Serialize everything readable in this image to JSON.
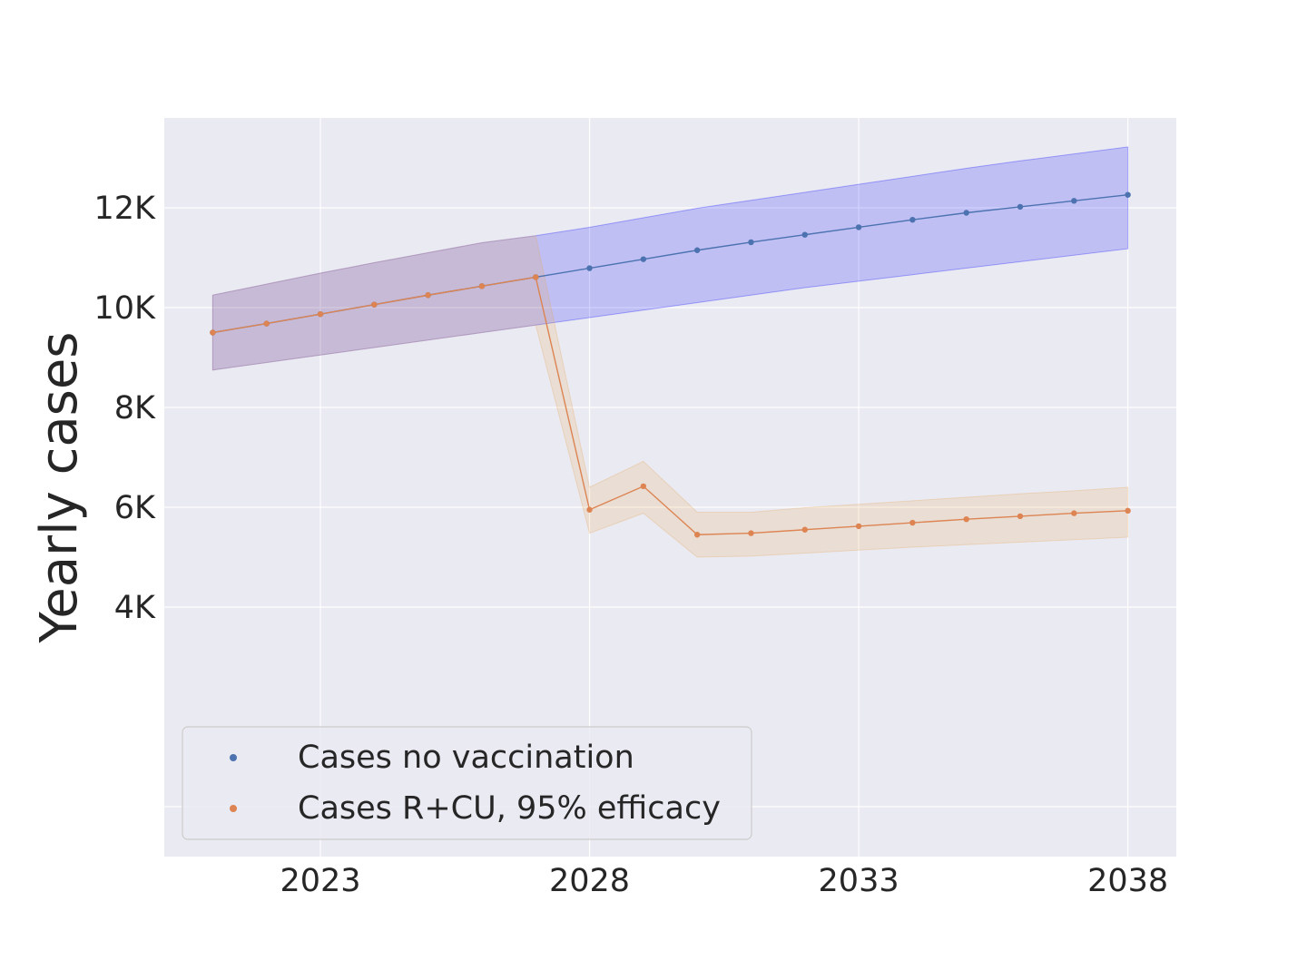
{
  "chart_data": {
    "type": "line",
    "title": "",
    "xlabel": "",
    "ylabel": "Yearly cases",
    "xlim": [
      2020.1,
      2038.9
    ],
    "ylim": [
      -1000,
      13800
    ],
    "x_ticks": [
      2023,
      2028,
      2033,
      2038
    ],
    "y_ticks": [
      {
        "value": 4000,
        "label": "4K"
      },
      {
        "value": 6000,
        "label": "6K"
      },
      {
        "value": 8000,
        "label": "8K"
      },
      {
        "value": 10000,
        "label": "10K"
      },
      {
        "value": 12000,
        "label": "12K"
      }
    ],
    "extra_gridlines_y": [
      0
    ],
    "grid": true,
    "legend_position": "lower-left",
    "x": [
      2021,
      2022,
      2023,
      2024,
      2025,
      2026,
      2027,
      2028,
      2029,
      2030,
      2031,
      2032,
      2033,
      2034,
      2035,
      2036,
      2037,
      2038
    ],
    "series": [
      {
        "name": "Cases no vaccination",
        "color": "#4c72b0",
        "band_color": "#0000ff",
        "values": [
          9500,
          9680,
          9870,
          10060,
          10250,
          10430,
          10610,
          10790,
          10970,
          11150,
          11310,
          11460,
          11610,
          11760,
          11900,
          12020,
          12140,
          12260
        ],
        "lower": [
          8750,
          8900,
          9050,
          9200,
          9350,
          9500,
          9650,
          9800,
          9950,
          10100,
          10250,
          10400,
          10530,
          10660,
          10790,
          10920,
          11050,
          11180
        ],
        "upper": [
          10250,
          10470,
          10690,
          10900,
          11100,
          11300,
          11440,
          11610,
          11800,
          11990,
          12150,
          12310,
          12470,
          12630,
          12790,
          12940,
          13080,
          13220
        ]
      },
      {
        "name": "Cases R+CU, 95% efficacy",
        "color": "#dd8452",
        "band_color": "#e8a860",
        "values": [
          9500,
          9680,
          9870,
          10060,
          10250,
          10430,
          10610,
          5950,
          6420,
          5450,
          5480,
          5550,
          5620,
          5690,
          5760,
          5820,
          5880,
          5930
        ],
        "lower": [
          8750,
          8900,
          9050,
          9200,
          9350,
          9500,
          9650,
          5480,
          5880,
          5000,
          5020,
          5080,
          5140,
          5200,
          5250,
          5300,
          5350,
          5400
        ],
        "upper": [
          10250,
          10470,
          10690,
          10900,
          11100,
          11300,
          11440,
          6400,
          6920,
          5900,
          5900,
          5990,
          6060,
          6130,
          6200,
          6270,
          6330,
          6400
        ]
      }
    ]
  }
}
